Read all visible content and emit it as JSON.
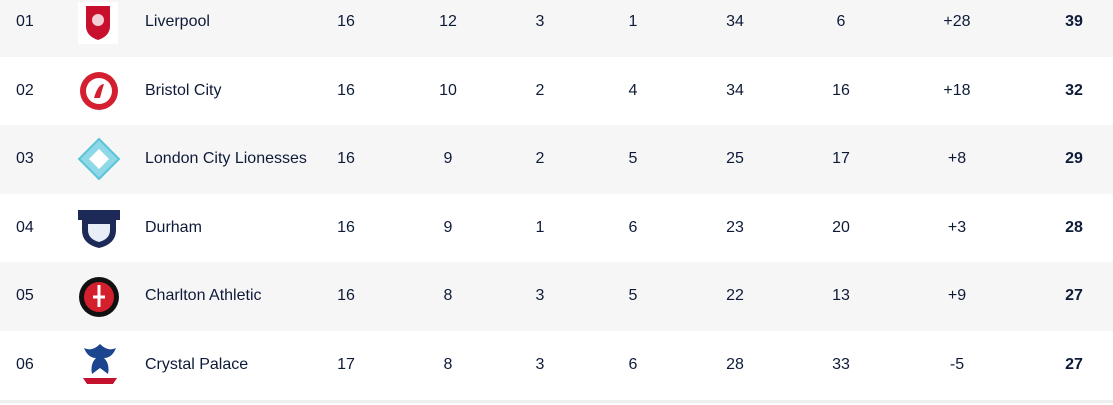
{
  "table": {
    "rows": [
      [
        "01",
        "Liverpool",
        16,
        12,
        3,
        1,
        34,
        6,
        "+28",
        39
      ],
      [
        "02",
        "Bristol City",
        16,
        10,
        2,
        4,
        34,
        16,
        "+18",
        32
      ],
      [
        "03",
        "London City Lionesses",
        16,
        9,
        2,
        5,
        25,
        17,
        "+8",
        29
      ],
      [
        "04",
        "Durham",
        16,
        9,
        1,
        6,
        23,
        20,
        "+3",
        28
      ],
      [
        "05",
        "Charlton Athletic",
        16,
        8,
        3,
        5,
        22,
        13,
        "+9",
        27
      ],
      [
        "06",
        "Crystal Palace",
        17,
        8,
        3,
        6,
        28,
        33,
        "-5",
        27
      ]
    ]
  }
}
